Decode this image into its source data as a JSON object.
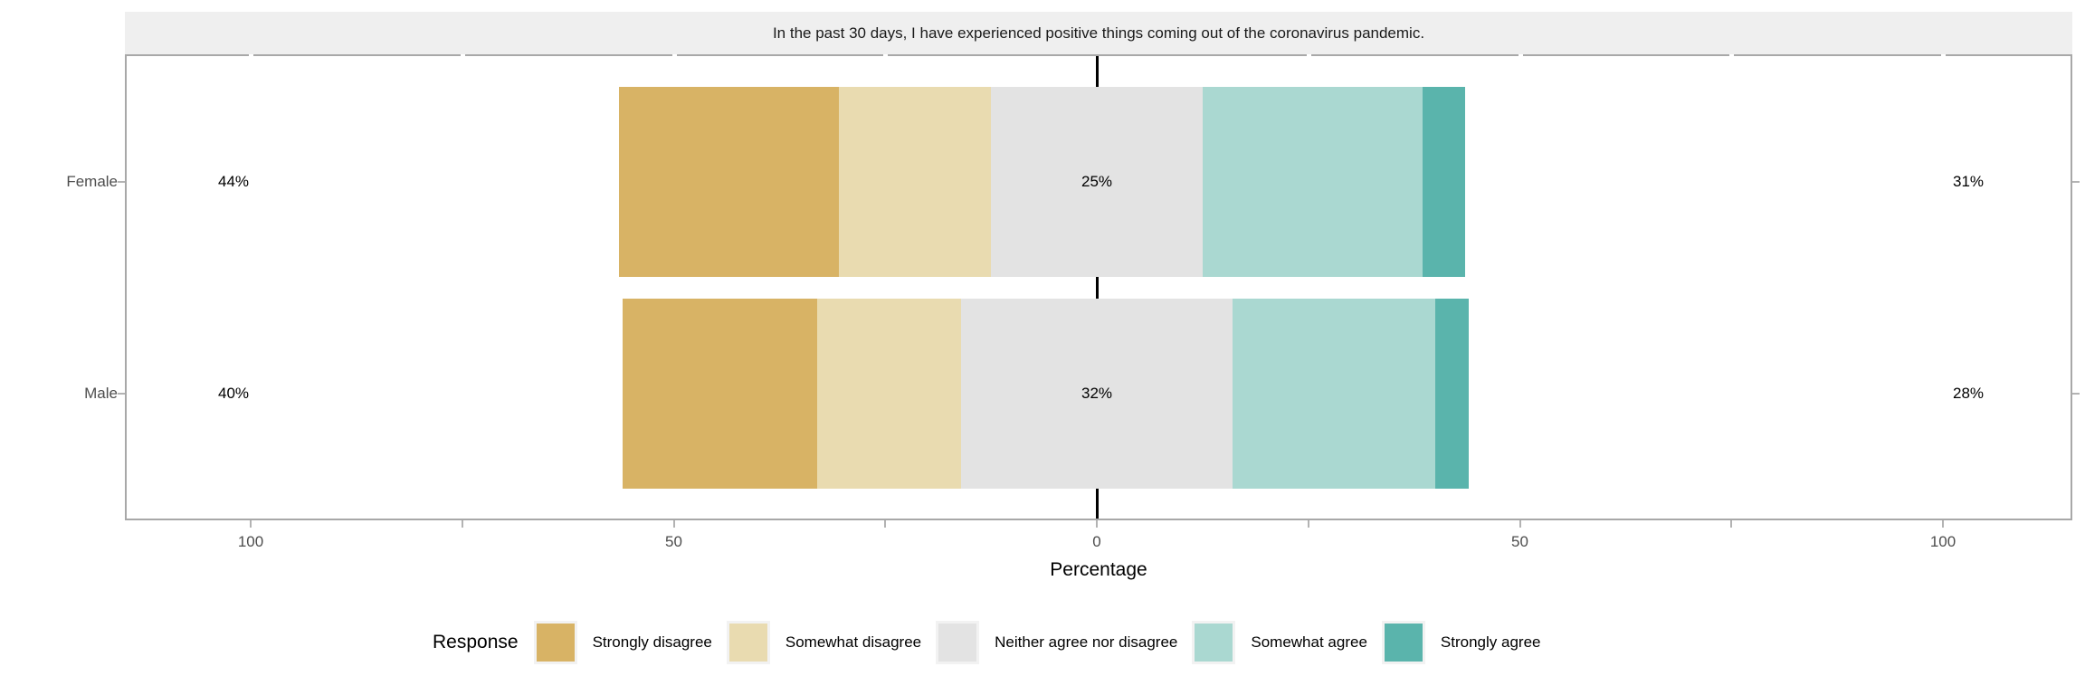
{
  "chart_data": {
    "type": "bar",
    "variant": "diverging-stacked-likert",
    "title": "In the past 30 days, I have experienced positive things coming out of the coronavirus pandemic.",
    "xlabel": "Percentage",
    "legend_title": "Response",
    "legend_position": "bottom",
    "categories": [
      "Female",
      "Male"
    ],
    "responses": [
      {
        "label": "Strongly disagree",
        "color": "#D8B365"
      },
      {
        "label": "Somewhat disagree",
        "color": "#E9DBB0"
      },
      {
        "label": "Neither agree nor disagree",
        "color": "#E3E3E3"
      },
      {
        "label": "Somewhat agree",
        "color": "#AAD8D1"
      },
      {
        "label": "Strongly agree",
        "color": "#5AB4AC"
      }
    ],
    "rows": [
      {
        "category": "Female",
        "values": [
          26,
          18,
          25,
          26,
          5
        ],
        "low_total_label": "44%",
        "neutral_label": "25%",
        "high_total_label": "31%"
      },
      {
        "category": "Male",
        "values": [
          23,
          17,
          32,
          24,
          4
        ],
        "low_total_label": "40%",
        "neutral_label": "32%",
        "high_total_label": "28%"
      }
    ],
    "x_axis": {
      "tick_values": [
        -100,
        -50,
        0,
        50,
        100
      ],
      "tick_labels": [
        "100",
        "50",
        "0",
        "50",
        "100"
      ],
      "minor_tick_values": [
        -75,
        -25,
        25,
        75
      ],
      "range": [
        -115,
        115
      ]
    },
    "neutral_centered_on_zero": true
  },
  "style": {
    "strip_bg": "#EFEFEF",
    "panel_border": "#A8A8A8",
    "tick_color": "#B3B3B3",
    "axis_text_color": "#4D4D4D",
    "zero_line_color": "#000000"
  }
}
